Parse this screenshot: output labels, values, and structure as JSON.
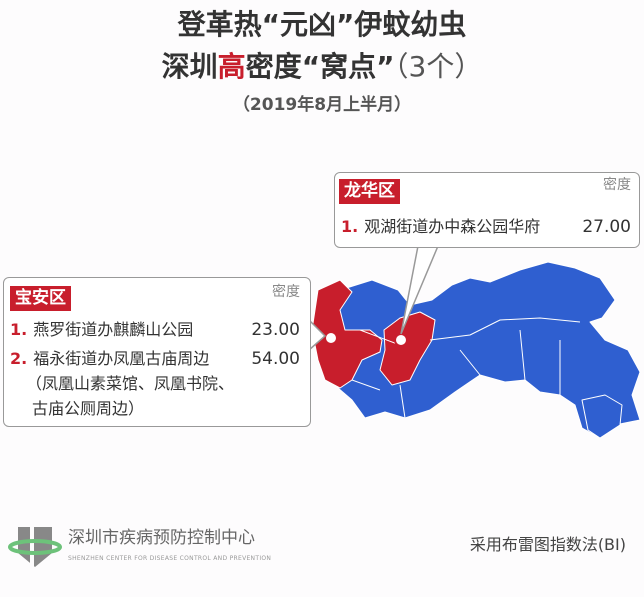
{
  "title": {
    "line1": "登革热“元凶”伊蚊幼虫",
    "line2_pre": "深圳",
    "line2_hi": "高",
    "line2_post": "密度“窝点”",
    "line2_count": "（3个）",
    "subtitle": "（2019年8月上半月）"
  },
  "colors": {
    "red": "#c81e2c",
    "blue": "#2f5fd0"
  },
  "longhua": {
    "district": "龙华区",
    "density_label": "密度",
    "items": [
      {
        "num": "1.",
        "name": "观湖街道办中森公园华府",
        "value": "27.00"
      }
    ]
  },
  "baoan": {
    "district": "宝安区",
    "density_label": "密度",
    "items": [
      {
        "num": "1.",
        "name": "燕罗街道办麒麟山公园",
        "value": "23.00"
      },
      {
        "num": "2.",
        "name": "福永街道办凤凰古庙周边",
        "value": "54.00",
        "detail1": "（凤凰山素菜馆、凤凰书院、",
        "detail2": "古庙公厕周边）"
      }
    ]
  },
  "footer": {
    "org": "深圳市疾病预防控制中心",
    "org_en": "SHENZHEN CENTER FOR DISEASE CONTROL AND PREVENTION",
    "method": "采用布雷图指数法(BI)"
  }
}
